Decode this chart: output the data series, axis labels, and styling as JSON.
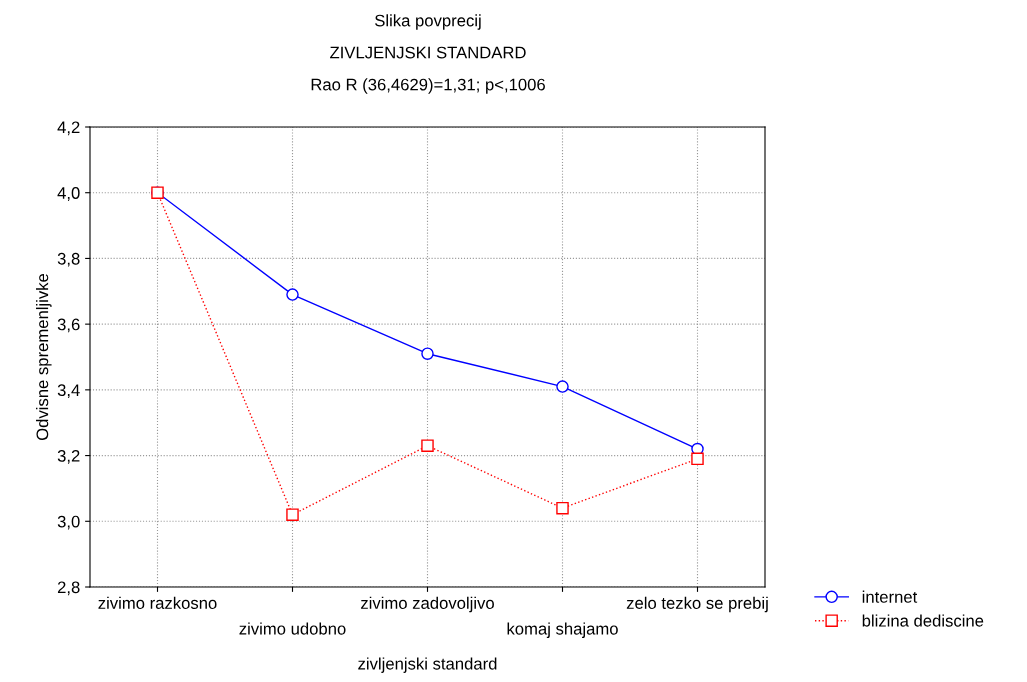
{
  "chart_data": {
    "type": "line",
    "title": "Slika povprecij",
    "subtitle": "ZIVLJENJSKI STANDARD",
    "annotations": [
      "Rao R (36,4629)=1,31; p<,1006"
    ],
    "xlabel": "zivljenjski standard",
    "ylabel": "Odvisne spremenljivke",
    "categories": [
      "zivimo razkosno",
      "zivimo udobno",
      "zivimo zadovoljivo",
      "komaj shajamo",
      "zelo tezko se prebij"
    ],
    "series": [
      {
        "name": "internet",
        "color": "#0000ff",
        "marker": "circle",
        "line_style": "solid",
        "values": [
          4.0,
          3.69,
          3.51,
          3.41,
          3.22
        ]
      },
      {
        "name": "blizina dediscine",
        "color": "#ff0000",
        "marker": "square",
        "line_style": "dotted",
        "values": [
          4.0,
          3.02,
          3.23,
          3.04,
          3.19
        ]
      }
    ],
    "ylim": [
      2.8,
      4.2
    ],
    "yticks": [
      {
        "value": 2.8,
        "label": "2,8"
      },
      {
        "value": 3.0,
        "label": "3,0"
      },
      {
        "value": 3.2,
        "label": "3,2"
      },
      {
        "value": 3.4,
        "label": "3,4"
      },
      {
        "value": 3.6,
        "label": "3,6"
      },
      {
        "value": 3.8,
        "label": "3,8"
      },
      {
        "value": 4.0,
        "label": "4,0"
      },
      {
        "value": 4.2,
        "label": "4,2"
      }
    ],
    "grid": true,
    "legend": "bottom right"
  }
}
